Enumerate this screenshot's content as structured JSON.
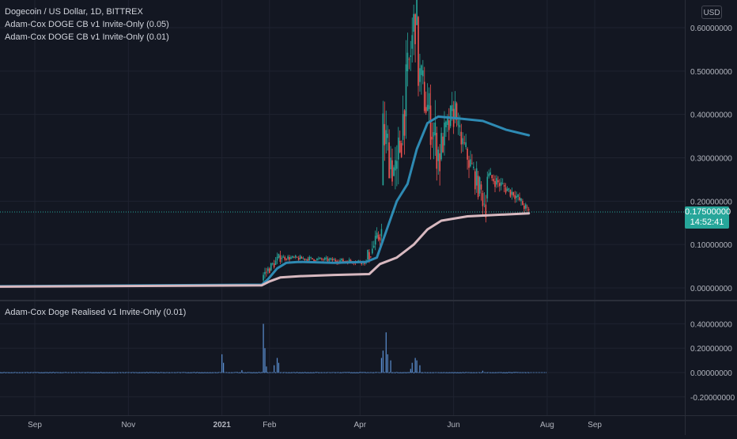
{
  "header": {
    "symbol_title": "Dogecoin / US Dollar, 1D, BITTREX",
    "indicator_1": "Adam-Cox DOGE CB v1 Invite-Only (0.05)",
    "indicator_2": "Adam-Cox DOGE CB v1 Invite-Only (0.01)",
    "currency_button": "USD"
  },
  "last_price": {
    "value": "0.17500000",
    "countdown": "14:52:41",
    "color": "#26a69a"
  },
  "colors": {
    "background": "#131722",
    "grid": "#1f2330",
    "up": "#26a69a",
    "down": "#ef5350",
    "band_upper": "#2e8ab3",
    "band_lower": "#d8b9c0",
    "histogram": "#5b8fd1",
    "axis_text": "#b2b5be"
  },
  "chart_data": [
    {
      "type": "candlestick",
      "title": "Dogecoin / US Dollar, 1D, BITTREX",
      "x_labels": [
        "Sep",
        "Nov",
        "2021",
        "Feb",
        "Apr",
        "Jun",
        "Aug",
        "Sep"
      ],
      "x_tick_dates": [
        "2020-09-01",
        "2020-11-01",
        "2021-01-01",
        "2021-02-01",
        "2021-04-01",
        "2021-06-01",
        "2021-08-01",
        "2021-09-01"
      ],
      "y_ticks": [
        "0.00000000",
        "0.10000000",
        "0.20000000",
        "0.30000000",
        "0.40000000",
        "0.50000000",
        "0.60000000"
      ],
      "ylim": [
        -0.03,
        0.66
      ],
      "legend": "top-left",
      "grid": true,
      "price_segments": [
        {
          "from": "2020-07-10",
          "to": "2020-12-19",
          "start": 0.0027,
          "end": 0.0046,
          "vol": 0.0003
        },
        {
          "from": "2020-12-20",
          "to": "2021-01-27",
          "start": 0.0046,
          "end": 0.0075,
          "vol": 0.0006
        },
        {
          "from": "2021-01-28",
          "to": "2021-02-09",
          "start": 0.03,
          "end": 0.075,
          "vol": 0.012
        },
        {
          "from": "2021-02-10",
          "to": "2021-04-05",
          "start": 0.07,
          "end": 0.06,
          "vol": 0.006
        },
        {
          "from": "2021-04-06",
          "to": "2021-04-15",
          "start": 0.07,
          "end": 0.13,
          "vol": 0.02
        },
        {
          "from": "2021-04-16",
          "to": "2021-04-25",
          "start": 0.36,
          "end": 0.25,
          "vol": 0.06
        },
        {
          "from": "2021-04-26",
          "to": "2021-05-08",
          "start": 0.3,
          "end": 0.66,
          "vol": 0.07
        },
        {
          "from": "2021-05-09",
          "to": "2021-05-23",
          "start": 0.5,
          "end": 0.3,
          "vol": 0.06
        },
        {
          "from": "2021-05-24",
          "to": "2021-06-03",
          "start": 0.33,
          "end": 0.42,
          "vol": 0.04
        },
        {
          "from": "2021-06-04",
          "to": "2021-06-22",
          "start": 0.36,
          "end": 0.19,
          "vol": 0.03
        },
        {
          "from": "2021-06-23",
          "to": "2021-07-09",
          "start": 0.26,
          "end": 0.22,
          "vol": 0.015
        },
        {
          "from": "2021-07-10",
          "to": "2021-07-20",
          "start": 0.22,
          "end": 0.175,
          "vol": 0.012
        }
      ],
      "series": [
        {
          "name": "Adam-Cox DOGE CB v1 Invite-Only (0.05)",
          "color": "#2e8ab3",
          "points": [
            [
              "2020-07-10",
              0.0033
            ],
            [
              "2021-01-27",
              0.0075
            ],
            [
              "2021-01-31",
              0.02
            ],
            [
              "2021-02-06",
              0.045
            ],
            [
              "2021-02-12",
              0.058
            ],
            [
              "2021-02-20",
              0.06
            ],
            [
              "2021-03-15",
              0.058
            ],
            [
              "2021-04-05",
              0.06
            ],
            [
              "2021-04-12",
              0.07
            ],
            [
              "2021-04-17",
              0.12
            ],
            [
              "2021-04-25",
              0.2
            ],
            [
              "2021-05-02",
              0.24
            ],
            [
              "2021-05-08",
              0.32
            ],
            [
              "2021-05-15",
              0.38
            ],
            [
              "2021-05-22",
              0.395
            ],
            [
              "2021-06-01",
              0.392
            ],
            [
              "2021-06-20",
              0.385
            ],
            [
              "2021-07-05",
              0.365
            ],
            [
              "2021-07-20",
              0.352
            ]
          ]
        },
        {
          "name": "Adam-Cox DOGE CB v1 Invite-Only (0.01)",
          "color": "#d8b9c0",
          "points": [
            [
              "2020-07-10",
              0.0025
            ],
            [
              "2021-01-27",
              0.006
            ],
            [
              "2021-02-01",
              0.015
            ],
            [
              "2021-02-08",
              0.024
            ],
            [
              "2021-02-20",
              0.027
            ],
            [
              "2021-03-15",
              0.03
            ],
            [
              "2021-04-07",
              0.032
            ],
            [
              "2021-04-14",
              0.055
            ],
            [
              "2021-04-25",
              0.07
            ],
            [
              "2021-05-06",
              0.1
            ],
            [
              "2021-05-15",
              0.135
            ],
            [
              "2021-05-24",
              0.155
            ],
            [
              "2021-06-10",
              0.165
            ],
            [
              "2021-07-20",
              0.172
            ]
          ]
        }
      ]
    },
    {
      "type": "bar",
      "title": "Adam-Cox Doge Realised v1 Invite-Only (0.01)",
      "y_ticks": [
        "0.40000000",
        "0.20000000",
        "0.00000000",
        "-0.20000000"
      ],
      "ylim": [
        -0.3,
        0.45
      ],
      "baseline_from": "2020-07-10",
      "baseline_to": "2021-07-20",
      "spikes": [
        [
          "2021-01-01",
          0.15
        ],
        [
          "2021-01-02",
          0.08
        ],
        [
          "2021-01-14",
          0.02
        ],
        [
          "2021-01-28",
          0.4
        ],
        [
          "2021-01-29",
          0.2
        ],
        [
          "2021-01-30",
          0.05
        ],
        [
          "2021-02-04",
          0.06
        ],
        [
          "2021-02-06",
          0.12
        ],
        [
          "2021-02-07",
          0.08
        ],
        [
          "2021-04-15",
          0.12
        ],
        [
          "2021-04-16",
          0.18
        ],
        [
          "2021-04-18",
          0.33
        ],
        [
          "2021-04-19",
          0.15
        ],
        [
          "2021-04-21",
          0.1
        ],
        [
          "2021-05-04",
          0.03
        ],
        [
          "2021-05-05",
          0.08
        ],
        [
          "2021-05-07",
          0.12
        ],
        [
          "2021-05-08",
          0.1
        ],
        [
          "2021-05-10",
          0.06
        ],
        [
          "2021-06-20",
          0.015
        ]
      ]
    }
  ]
}
